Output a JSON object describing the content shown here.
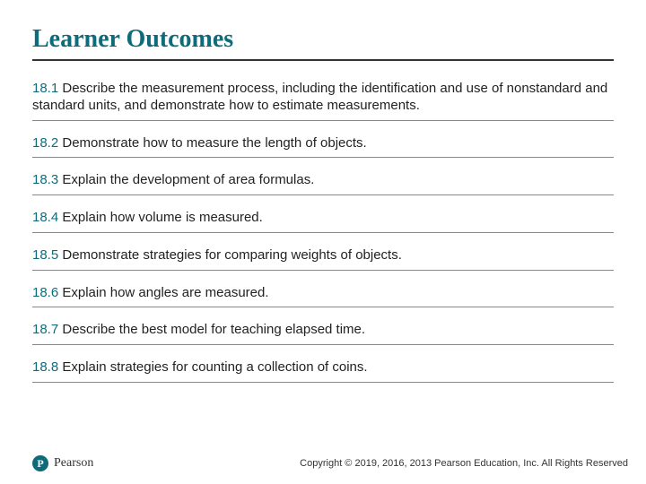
{
  "title": "Learner Outcomes",
  "title_color": "#0f6b7a",
  "title_fontsize": 28,
  "number_color": "#0f6b7a",
  "body_color": "#222222",
  "body_fontsize": 15,
  "divider_color": "#888888",
  "title_underline_color": "#333333",
  "background_color": "#ffffff",
  "outcomes": [
    {
      "num": "18.1",
      "text": "Describe the measurement process, including the identification and use of nonstandard and standard units, and demonstrate how to estimate measurements."
    },
    {
      "num": "18.2",
      "text": "Demonstrate how to measure the length of objects."
    },
    {
      "num": "18.3",
      "text": "Explain the development of area formulas."
    },
    {
      "num": "18.4",
      "text": "Explain how volume is measured."
    },
    {
      "num": "18.5",
      "text": "Demonstrate strategies for comparing weights of objects."
    },
    {
      "num": "18.6",
      "text": "Explain how angles are measured."
    },
    {
      "num": "18.7",
      "text": "Describe the best model for teaching elapsed time."
    },
    {
      "num": "18.8",
      "text": "Explain strategies for counting a collection of coins."
    }
  ],
  "logo": {
    "mark_letter": "P",
    "mark_bg": "#0f6b7a",
    "brand": "Pearson"
  },
  "copyright": "Copyright © 2019, 2016, 2013 Pearson Education, Inc. All Rights Reserved"
}
